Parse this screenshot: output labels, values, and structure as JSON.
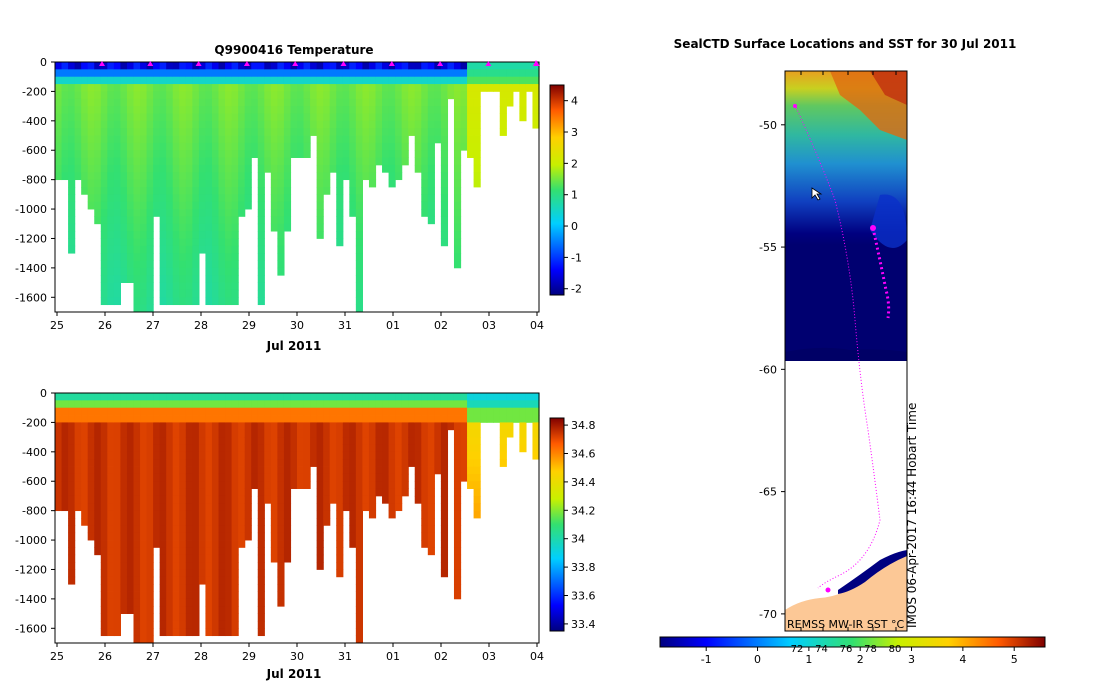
{
  "chart_data": [
    {
      "type": "heatmap",
      "title": "Q9900416  Temperature",
      "xlabel": "Jul 2011",
      "x_tick_labels": [
        "25",
        "26",
        "27",
        "28",
        "29",
        "30",
        "31",
        "01",
        "02",
        "03",
        "04"
      ],
      "y_tick_labels": [
        "0",
        "-200",
        "-400",
        "-600",
        "-800",
        "-1000",
        "-1200",
        "-1400",
        "-1600"
      ],
      "ylim": [
        -1700,
        0
      ],
      "colorbar": {
        "ticks": [
          "4",
          "3",
          "2",
          "1",
          "0",
          "-1",
          "-2"
        ],
        "range": [
          -2.2,
          4.5
        ]
      },
      "profile_markers": "magenta triangles along top axis",
      "profile_max_depth": [
        800,
        800,
        1300,
        800,
        900,
        1000,
        1100,
        1650,
        1650,
        1650,
        1500,
        1500,
        1700,
        1700,
        1700,
        1050,
        1650,
        1650,
        1650,
        1650,
        1650,
        1650,
        1300,
        1650,
        1650,
        1650,
        1650,
        1650,
        1050,
        1000,
        650,
        1650,
        750,
        1150,
        1450,
        1150,
        650,
        650,
        650,
        500,
        1200,
        900,
        750,
        1250,
        800,
        1050,
        1700,
        800,
        850,
        700,
        750,
        850,
        800,
        700,
        500,
        750,
        1050,
        1100,
        550,
        1250,
        250,
        1400,
        600,
        650,
        850,
        200,
        200,
        200,
        500,
        300,
        200,
        400,
        200,
        450
      ],
      "temperature_profiles_by_depth_band": [
        [
          -2,
          -1.5,
          0,
          1,
          1.6,
          1.8,
          1.8,
          1.7
        ],
        [
          -2,
          -1.2,
          0.3,
          1.2,
          1.8,
          2,
          1.9,
          1.8
        ],
        [
          -1,
          0.5,
          2,
          2.5,
          2.7,
          2.8,
          2.8,
          2.7
        ]
      ]
    },
    {
      "type": "heatmap",
      "title": "",
      "xlabel": "Jul 2011",
      "x_tick_labels": [
        "25",
        "26",
        "27",
        "28",
        "29",
        "30",
        "31",
        "01",
        "02",
        "03",
        "04"
      ],
      "y_tick_labels": [
        "0",
        "-200",
        "-400",
        "-600",
        "-800",
        "-1000",
        "-1200",
        "-1400",
        "-1600"
      ],
      "ylim": [
        -1700,
        0
      ],
      "colorbar": {
        "ticks": [
          "34.8",
          "34.6",
          "34.4",
          "34.2",
          "34",
          "33.8",
          "33.6",
          "33.4"
        ],
        "range": [
          33.35,
          34.85
        ]
      }
    },
    {
      "type": "heatmap",
      "title": "SealCTD Surface Locations and SST for 30 Jul 2011",
      "y_tick_labels": [
        "-50",
        "-55",
        "-60",
        "-65",
        "-70"
      ],
      "ylim": [
        -70.7,
        -47.8
      ],
      "vertical_label": "IMOS 06-Apr-2017 16:44 Hobart Time",
      "source_label": "REMSS MW-IR SST °C",
      "colorbar": {
        "ticks": [
          "-1",
          "0",
          "1",
          "2",
          "3",
          "4",
          "5"
        ],
        "secondary_ticks": [
          "72",
          "74",
          "76",
          "78",
          "80"
        ],
        "range": [
          -1.9,
          5.6
        ]
      }
    }
  ]
}
